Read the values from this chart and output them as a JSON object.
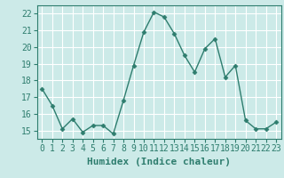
{
  "x": [
    0,
    1,
    2,
    3,
    4,
    5,
    6,
    7,
    8,
    9,
    10,
    11,
    12,
    13,
    14,
    15,
    16,
    17,
    18,
    19,
    20,
    21,
    22,
    23
  ],
  "y": [
    17.5,
    16.5,
    15.1,
    15.7,
    14.9,
    15.3,
    15.3,
    14.8,
    16.8,
    18.9,
    20.9,
    22.1,
    21.8,
    20.8,
    19.5,
    18.5,
    19.9,
    20.5,
    18.2,
    18.9,
    15.6,
    15.1,
    15.1,
    15.5
  ],
  "line_color": "#2e7d6e",
  "marker": "D",
  "marker_size": 2.5,
  "bg_color": "#cceae8",
  "grid_color": "#ffffff",
  "xlabel": "Humidex (Indice chaleur)",
  "ylim": [
    14.5,
    22.5
  ],
  "xlim": [
    -0.5,
    23.5
  ],
  "yticks": [
    15,
    16,
    17,
    18,
    19,
    20,
    21,
    22
  ],
  "xticks": [
    0,
    1,
    2,
    3,
    4,
    5,
    6,
    7,
    8,
    9,
    10,
    11,
    12,
    13,
    14,
    15,
    16,
    17,
    18,
    19,
    20,
    21,
    22,
    23
  ],
  "tick_color": "#2e7d6e",
  "label_color": "#2e7d6e",
  "tick_fontsize": 7,
  "xlabel_fontsize": 8,
  "line_width": 1.0
}
